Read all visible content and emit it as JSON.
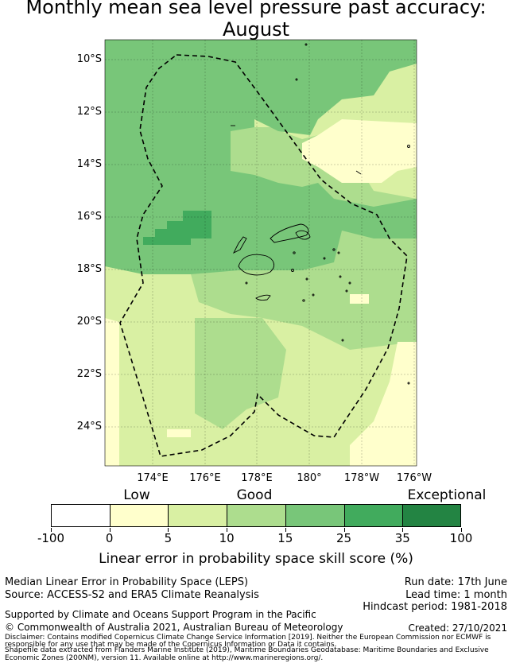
{
  "title_line1": "Monthly mean sea level pressure past accuracy:",
  "title_line2": "August",
  "lat_labels": [
    "10°S",
    "12°S",
    "14°S",
    "16°S",
    "18°S",
    "20°S",
    "22°S",
    "24°S"
  ],
  "lon_labels": [
    "174°E",
    "176°E",
    "178°E",
    "180°",
    "178°W",
    "176°W"
  ],
  "colorbar": {
    "categories": [
      "Low",
      "Good",
      "Exceptional"
    ],
    "tick_labels": [
      "-100",
      "0",
      "5",
      "10",
      "15",
      "25",
      "35",
      "100"
    ],
    "bins": [
      {
        "from": -100,
        "to": 0,
        "color": "#ffffff"
      },
      {
        "from": 0,
        "to": 5,
        "color": "#ffffcc"
      },
      {
        "from": 5,
        "to": 10,
        "color": "#d9f0a3"
      },
      {
        "from": 10,
        "to": 15,
        "color": "#addd8e"
      },
      {
        "from": 15,
        "to": 25,
        "color": "#78c679"
      },
      {
        "from": 25,
        "to": 35,
        "color": "#41ab5d"
      },
      {
        "from": 35,
        "to": 100,
        "color": "#238443"
      }
    ],
    "title": "Linear error in probability space skill score (%)"
  },
  "footer": {
    "left1": "Median Linear Error in Probability Space (LEPS)",
    "left2": "Source: ACCESS-S2 and ERA5 Climate Reanalysis",
    "right1": "Run date: 17th June",
    "right2": "Lead time: 1 month",
    "right3": "Hindcast period: 1981-2018",
    "support": "Supported by Climate and Oceans Support Program in the Pacific",
    "copyright": "© Commonwealth of Australia 2021, Australian Bureau of Meteorology",
    "created": "Created: 27/10/2021",
    "disclaimer1": "Disclaimer: Contains modified Copernicus Climate Change Service Information [2019]. Neither the European Commission nor ECMWF is",
    "disclaimer2": "responsible for any use that may be made of the Copernicus Information or Data it contains.",
    "shapefile1": "Shapefile data extracted from Flanders Marine Institute (2019), Maritime Boundaries Geodatabase: Maritime Boundaries and Exclusive",
    "shapefile2": "Economic Zones (200NM), version 11. Available online at http://www.marineregions.org/."
  }
}
